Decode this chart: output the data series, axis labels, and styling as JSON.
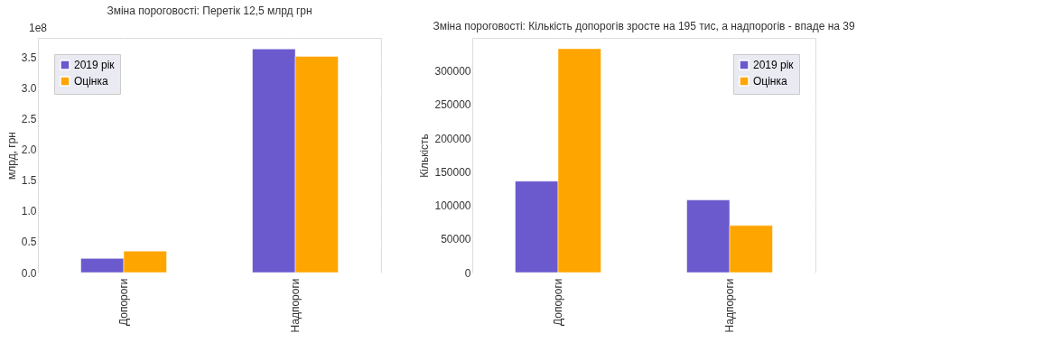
{
  "chart_data": [
    {
      "type": "bar",
      "title": "Зміна пороговості: Перетік 12,5 млрд грн",
      "ylabel": "млрд, грн",
      "categories": [
        "Допороги",
        "Надпороги"
      ],
      "series": [
        {
          "name": "2019 рік",
          "color": "#6a5acd",
          "values": [
            0.23,
            3.64
          ]
        },
        {
          "name": "Оцінка",
          "color": "#ffa500",
          "values": [
            0.35,
            3.52
          ]
        }
      ],
      "ylim": [
        0,
        3.82
      ],
      "yticks": [
        {
          "value": 0,
          "label": "0.0"
        },
        0.5,
        {
          "value": 1,
          "label": "1.0"
        },
        1.5,
        {
          "value": 2,
          "label": "2.0"
        },
        2.5,
        {
          "value": 3,
          "label": "3.0"
        },
        3.5
      ],
      "annotations": [
        "1e8"
      ],
      "grid": true,
      "legend": "top left"
    },
    {
      "type": "bar",
      "title": "Зміна пороговості: Кількість допорогів зросте на 195 тис, а надпорогів - впаде на 39",
      "ylabel": "Кількість",
      "categories": [
        "Допороги",
        "Надпороги"
      ],
      "series": [
        {
          "name": "2019 рік",
          "color": "#6a5acd",
          "values": [
            136000,
            108000
          ]
        },
        {
          "name": "Оцінка",
          "color": "#ffa500",
          "values": [
            333000,
            70000
          ]
        }
      ],
      "ylim": [
        0,
        349000
      ],
      "yticks": [
        0,
        50000,
        100000,
        150000,
        200000,
        250000,
        300000
      ],
      "grid": true,
      "legend": "top right"
    }
  ]
}
